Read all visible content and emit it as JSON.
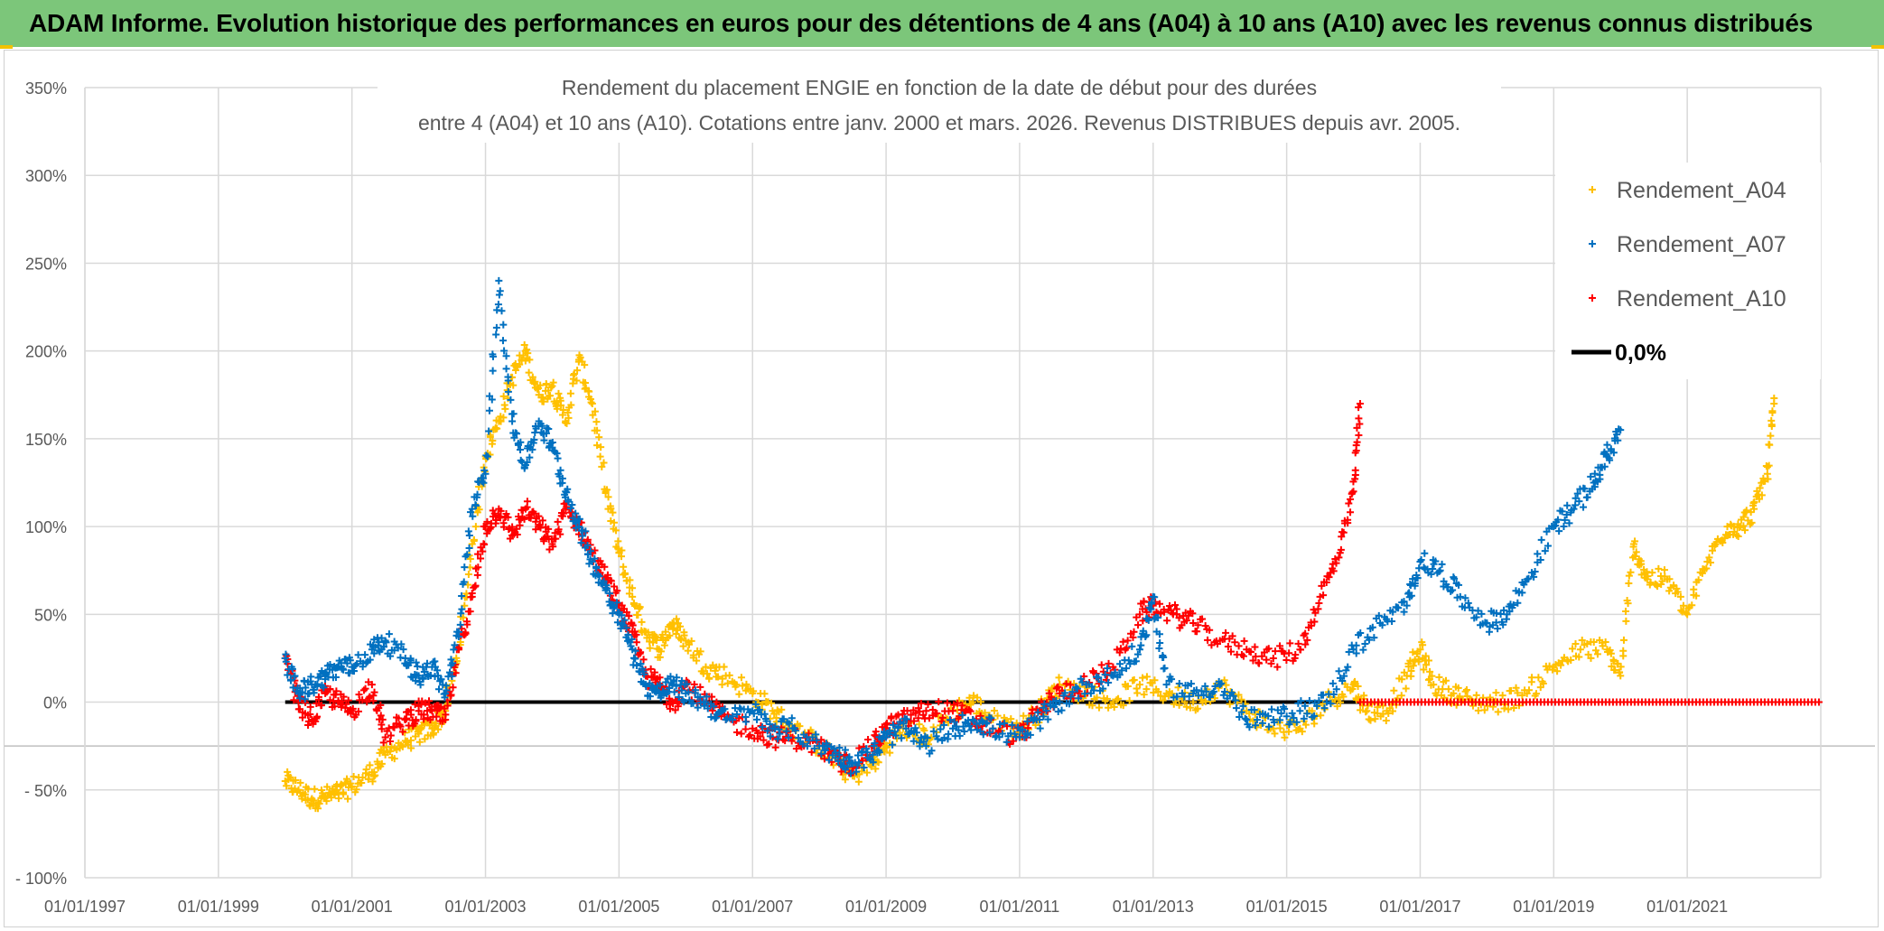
{
  "banner": {
    "title": "ADAM Informe. Evolution historique des performances en euros pour des détentions de 4 ans (A04) à 10 ans (A10) avec les revenus connus distribués"
  },
  "colors": {
    "banner_bg": "#7cc67a",
    "A04": "#ffc000",
    "A07": "#0070c0",
    "A10": "#ff0000",
    "zero": "#000000",
    "grid": "#d9d9d9"
  },
  "chart_data": {
    "type": "scatter",
    "title_line1": "Rendement du placement ENGIE en fonction de la date de début pour des durées",
    "title_line2": "entre 4 (A04) et 10 ans (A10). Cotations entre janv. 2000 et mars. 2026. Revenus DISTRIBUES depuis avr. 2005.",
    "xlabel": "",
    "ylabel": "",
    "xlim": [
      1997.0,
      2023.0
    ],
    "ylim": [
      -100,
      350
    ],
    "y_ticks": [
      350,
      300,
      250,
      200,
      150,
      100,
      50,
      0,
      -50,
      -100
    ],
    "y_tick_labels": [
      "350%",
      "300%",
      "250%",
      "200%",
      "150%",
      "100%",
      "50%",
      "0%",
      "- 50%",
      "- 100%"
    ],
    "x_ticks": [
      1997,
      1999,
      2001,
      2003,
      2005,
      2007,
      2009,
      2011,
      2013,
      2015,
      2017,
      2019,
      2021
    ],
    "x_tick_labels": [
      "01/01/1997",
      "01/01/1999",
      "01/01/2001",
      "01/01/2003",
      "01/01/2005",
      "01/01/2007",
      "01/01/2009",
      "01/01/2011",
      "01/01/2013",
      "01/01/2015",
      "01/01/2017",
      "01/01/2019",
      "01/01/2021"
    ],
    "legend_position": "top-right",
    "series": [
      {
        "name": "Rendement_A04",
        "marker": "+",
        "color": "#ffc000",
        "points": [
          [
            2000.0,
            -45
          ],
          [
            2000.2,
            -50
          ],
          [
            2000.4,
            -55
          ],
          [
            2000.6,
            -54
          ],
          [
            2000.8,
            -52
          ],
          [
            2001.0,
            -48
          ],
          [
            2001.3,
            -40
          ],
          [
            2001.5,
            -30
          ],
          [
            2001.8,
            -22
          ],
          [
            2002.0,
            -18
          ],
          [
            2002.2,
            -15
          ],
          [
            2002.4,
            -5
          ],
          [
            2002.6,
            30
          ],
          [
            2002.8,
            90
          ],
          [
            2003.0,
            140
          ],
          [
            2003.2,
            160
          ],
          [
            2003.4,
            185
          ],
          [
            2003.6,
            200
          ],
          [
            2003.8,
            175
          ],
          [
            2004.0,
            180
          ],
          [
            2004.2,
            160
          ],
          [
            2004.4,
            195
          ],
          [
            2004.6,
            170
          ],
          [
            2004.8,
            120
          ],
          [
            2005.0,
            85
          ],
          [
            2005.2,
            60
          ],
          [
            2005.4,
            40
          ],
          [
            2005.6,
            30
          ],
          [
            2005.8,
            45
          ],
          [
            2006.0,
            35
          ],
          [
            2006.3,
            20
          ],
          [
            2006.6,
            15
          ],
          [
            2007.0,
            5
          ],
          [
            2007.3,
            -5
          ],
          [
            2007.6,
            -15
          ],
          [
            2008.0,
            -25
          ],
          [
            2008.3,
            -35
          ],
          [
            2008.5,
            -42
          ],
          [
            2008.8,
            -35
          ],
          [
            2009.0,
            -25
          ],
          [
            2009.3,
            -15
          ],
          [
            2009.6,
            -20
          ],
          [
            2010.0,
            -5
          ],
          [
            2010.3,
            0
          ],
          [
            2010.6,
            -10
          ],
          [
            2011.0,
            -15
          ],
          [
            2011.3,
            -5
          ],
          [
            2011.6,
            10
          ],
          [
            2012.0,
            5
          ],
          [
            2012.4,
            0
          ],
          [
            2012.8,
            10
          ],
          [
            2013.2,
            5
          ],
          [
            2013.6,
            0
          ],
          [
            2014.0,
            10
          ],
          [
            2014.4,
            -5
          ],
          [
            2014.8,
            -15
          ],
          [
            2015.2,
            -15
          ],
          [
            2015.6,
            0
          ],
          [
            2016.0,
            10
          ],
          [
            2016.2,
            -5
          ],
          [
            2016.5,
            -5
          ],
          [
            2016.8,
            15
          ],
          [
            2017.0,
            30
          ],
          [
            2017.2,
            10
          ],
          [
            2017.5,
            5
          ],
          [
            2017.8,
            0
          ],
          [
            2018.2,
            0
          ],
          [
            2018.6,
            5
          ],
          [
            2019.0,
            20
          ],
          [
            2019.4,
            30
          ],
          [
            2019.8,
            30
          ],
          [
            2020.0,
            15
          ],
          [
            2020.2,
            90
          ],
          [
            2020.4,
            70
          ],
          [
            2020.7,
            70
          ],
          [
            2021.0,
            50
          ],
          [
            2021.3,
            80
          ],
          [
            2021.6,
            100
          ],
          [
            2021.8,
            100
          ],
          [
            2022.0,
            110
          ],
          [
            2022.2,
            130
          ],
          [
            2022.3,
            170
          ]
        ]
      },
      {
        "name": "Rendement_A07",
        "marker": "+",
        "color": "#0070c0",
        "points": [
          [
            2000.0,
            25
          ],
          [
            2000.2,
            5
          ],
          [
            2000.4,
            10
          ],
          [
            2000.6,
            15
          ],
          [
            2000.8,
            20
          ],
          [
            2001.0,
            20
          ],
          [
            2001.3,
            30
          ],
          [
            2001.5,
            35
          ],
          [
            2001.8,
            25
          ],
          [
            2002.0,
            15
          ],
          [
            2002.2,
            20
          ],
          [
            2002.4,
            5
          ],
          [
            2002.6,
            40
          ],
          [
            2002.8,
            110
          ],
          [
            2003.0,
            130
          ],
          [
            2003.2,
            240
          ],
          [
            2003.4,
            160
          ],
          [
            2003.6,
            135
          ],
          [
            2003.8,
            160
          ],
          [
            2004.0,
            145
          ],
          [
            2004.2,
            120
          ],
          [
            2004.4,
            100
          ],
          [
            2004.6,
            80
          ],
          [
            2004.8,
            65
          ],
          [
            2005.0,
            50
          ],
          [
            2005.2,
            30
          ],
          [
            2005.4,
            10
          ],
          [
            2005.6,
            5
          ],
          [
            2005.8,
            10
          ],
          [
            2006.0,
            5
          ],
          [
            2006.3,
            0
          ],
          [
            2006.6,
            -10
          ],
          [
            2007.0,
            -5
          ],
          [
            2007.3,
            -15
          ],
          [
            2007.6,
            -15
          ],
          [
            2008.0,
            -25
          ],
          [
            2008.3,
            -30
          ],
          [
            2008.5,
            -35
          ],
          [
            2008.8,
            -30
          ],
          [
            2009.0,
            -20
          ],
          [
            2009.3,
            -15
          ],
          [
            2009.6,
            -25
          ],
          [
            2010.0,
            -15
          ],
          [
            2010.3,
            -10
          ],
          [
            2010.6,
            -15
          ],
          [
            2011.0,
            -20
          ],
          [
            2011.3,
            -10
          ],
          [
            2011.6,
            0
          ],
          [
            2012.0,
            10
          ],
          [
            2012.4,
            15
          ],
          [
            2012.8,
            30
          ],
          [
            2013.0,
            60
          ],
          [
            2013.2,
            10
          ],
          [
            2013.6,
            5
          ],
          [
            2014.0,
            10
          ],
          [
            2014.4,
            -10
          ],
          [
            2014.8,
            -10
          ],
          [
            2015.2,
            -5
          ],
          [
            2015.6,
            0
          ],
          [
            2016.0,
            30
          ],
          [
            2016.4,
            45
          ],
          [
            2016.8,
            55
          ],
          [
            2017.0,
            80
          ],
          [
            2017.3,
            75
          ],
          [
            2017.6,
            60
          ],
          [
            2018.0,
            45
          ],
          [
            2018.3,
            50
          ],
          [
            2018.6,
            70
          ],
          [
            2019.0,
            100
          ],
          [
            2019.3,
            110
          ],
          [
            2019.6,
            125
          ],
          [
            2019.8,
            140
          ],
          [
            2020.0,
            155
          ]
        ]
      },
      {
        "name": "Rendement_A10",
        "marker": "+",
        "color": "#ff0000",
        "points": [
          [
            2000.0,
            25
          ],
          [
            2000.2,
            0
          ],
          [
            2000.4,
            -10
          ],
          [
            2000.6,
            5
          ],
          [
            2000.8,
            0
          ],
          [
            2001.0,
            -5
          ],
          [
            2001.3,
            10
          ],
          [
            2001.5,
            -20
          ],
          [
            2001.8,
            -10
          ],
          [
            2002.0,
            -5
          ],
          [
            2002.2,
            -5
          ],
          [
            2002.4,
            -10
          ],
          [
            2002.6,
            30
          ],
          [
            2002.8,
            60
          ],
          [
            2003.0,
            100
          ],
          [
            2003.2,
            110
          ],
          [
            2003.4,
            95
          ],
          [
            2003.6,
            110
          ],
          [
            2003.8,
            100
          ],
          [
            2004.0,
            90
          ],
          [
            2004.2,
            110
          ],
          [
            2004.4,
            100
          ],
          [
            2004.6,
            85
          ],
          [
            2004.8,
            70
          ],
          [
            2005.0,
            55
          ],
          [
            2005.2,
            40
          ],
          [
            2005.4,
            15
          ],
          [
            2005.6,
            10
          ],
          [
            2005.8,
            0
          ],
          [
            2006.0,
            10
          ],
          [
            2006.3,
            0
          ],
          [
            2006.6,
            -10
          ],
          [
            2007.0,
            -15
          ],
          [
            2007.3,
            -20
          ],
          [
            2007.6,
            -20
          ],
          [
            2008.0,
            -25
          ],
          [
            2008.3,
            -35
          ],
          [
            2008.5,
            -35
          ],
          [
            2008.8,
            -25
          ],
          [
            2009.0,
            -15
          ],
          [
            2009.3,
            -10
          ],
          [
            2009.6,
            -5
          ],
          [
            2010.0,
            -5
          ],
          [
            2010.3,
            -10
          ],
          [
            2010.6,
            -15
          ],
          [
            2011.0,
            -20
          ],
          [
            2011.3,
            -5
          ],
          [
            2011.6,
            5
          ],
          [
            2012.0,
            10
          ],
          [
            2012.4,
            20
          ],
          [
            2012.8,
            50
          ],
          [
            2013.0,
            55
          ],
          [
            2013.3,
            50
          ],
          [
            2013.6,
            45
          ],
          [
            2014.0,
            35
          ],
          [
            2014.4,
            30
          ],
          [
            2014.8,
            25
          ],
          [
            2015.2,
            30
          ],
          [
            2015.5,
            60
          ],
          [
            2015.8,
            85
          ],
          [
            2016.0,
            120
          ],
          [
            2016.1,
            170
          ]
        ]
      }
    ],
    "A10_flat_segment": {
      "from": 2016.1,
      "to": 2023.0,
      "value": 0
    },
    "zero_line": {
      "label": "0,0%",
      "value": 0,
      "from": 2000.0,
      "to": 2016.1
    }
  },
  "legend": [
    {
      "label": "Rendement_A04",
      "color": "#ffc000"
    },
    {
      "label": "Rendement_A07",
      "color": "#0070c0"
    },
    {
      "label": "Rendement_A10",
      "color": "#ff0000"
    },
    {
      "label": "0,0%",
      "color": "#000000"
    }
  ]
}
